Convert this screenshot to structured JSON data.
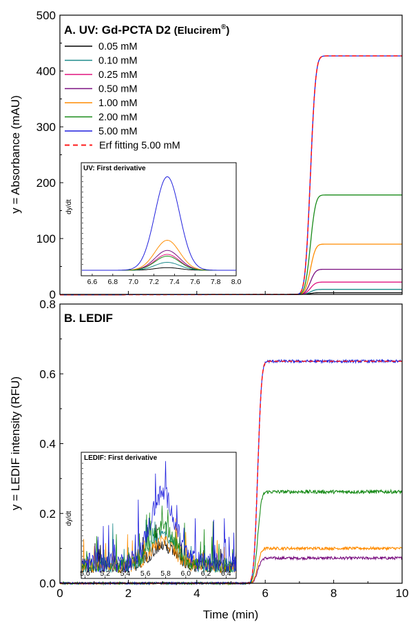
{
  "chart_data": [
    {
      "type": "line",
      "panel": "A",
      "title": "A. UV: Gd-PCTA D2",
      "title_suffix": "(Elucirem",
      "title_reg": "®",
      "title_close": ")",
      "ylabel": "y = Absorbance (mAU)",
      "xlim": [
        0,
        10
      ],
      "ylim": [
        0,
        500
      ],
      "yticks": [
        0,
        100,
        200,
        300,
        400,
        500
      ],
      "step": {
        "t0": 7.32,
        "sigma": 0.12,
        "baseline_slope": -3.0
      },
      "series": [
        {
          "name": "0.05 mM",
          "color": "#000000",
          "plateau": 3,
          "dash": false
        },
        {
          "name": "0.10 mM",
          "color": "#1b8a8a",
          "plateau": 9,
          "dash": false
        },
        {
          "name": "0.25 mM",
          "color": "#e0137f",
          "plateau": 22,
          "dash": false
        },
        {
          "name": "0.50 mM",
          "color": "#7a0f80",
          "plateau": 45,
          "dash": false
        },
        {
          "name": "1.00 mM",
          "color": "#ff8c00",
          "plateau": 90,
          "dash": false
        },
        {
          "name": "2.00 mM",
          "color": "#178a17",
          "plateau": 178,
          "dash": false
        },
        {
          "name": "5.00 mM",
          "color": "#1f1fdd",
          "plateau": 427,
          "dash": false
        },
        {
          "name": "Erf fitting 5.00 mM",
          "color": "#ff1a1a",
          "plateau": 427,
          "dash": true
        }
      ],
      "inset": {
        "title": "UV: First derivative",
        "ylabel": "dy/dt",
        "xlim": [
          6.5,
          8.0
        ],
        "xticks": [
          "6.6",
          "6.8",
          "7.0",
          "7.2",
          "7.4",
          "7.6",
          "7.8",
          "8.0"
        ],
        "peak_center": 7.33,
        "peak_width": 0.12,
        "peaks": [
          {
            "color": "#000000",
            "height": 6
          },
          {
            "color": "#1b8a8a",
            "height": 18
          },
          {
            "color": "#e0137f",
            "height": 36
          },
          {
            "color": "#7a0f80",
            "height": 45
          },
          {
            "color": "#ff8c00",
            "height": 68
          },
          {
            "color": "#178a17",
            "height": 32
          },
          {
            "color": "#1f1fdd",
            "height": 212
          }
        ],
        "ymax": 225
      }
    },
    {
      "type": "line",
      "panel": "B",
      "title": "B. LEDIF",
      "xlabel": "Time (min)",
      "ylabel": "y = LEDIF intensity (RFU)",
      "xlim": [
        0,
        10
      ],
      "ylim": [
        0,
        0.8
      ],
      "xticks": [
        0,
        2,
        4,
        6,
        8,
        10
      ],
      "yticks": [
        "0.0",
        "0.2",
        "0.4",
        "0.6",
        "0.8"
      ],
      "step": {
        "t0": 5.78,
        "sigma": 0.09
      },
      "series": [
        {
          "name": "0.50 mM",
          "color": "#7a0f80",
          "plateau": 0.072,
          "noise": 0.004
        },
        {
          "name": "1.00 mM",
          "color": "#ff8c00",
          "plateau": 0.1,
          "noise": 0.004
        },
        {
          "name": "2.00 mM",
          "color": "#178a17",
          "plateau": 0.262,
          "noise": 0.005
        },
        {
          "name": "5.00 mM",
          "color": "#1f1fdd",
          "plateau": 0.636,
          "noise": 0.004
        },
        {
          "name": "Erf fitting 5.00 mM",
          "color": "#ff1a1a",
          "plateau": 0.636,
          "noise": 0,
          "dash": true
        }
      ],
      "inset": {
        "title": "LEDIF: First derivative",
        "ylabel": "dy/dt",
        "xlim": [
          4.97,
          6.5
        ],
        "xticks": [
          "5.0",
          "5.2",
          "5.4",
          "5.6",
          "5.8",
          "6.0",
          "6.2",
          "6.4"
        ],
        "peak_center": 5.77,
        "peak_width": 0.12,
        "noise_colors": [
          "#000000",
          "#1b8a8a",
          "#ff8c00",
          "#178a17",
          "#1f1fdd"
        ]
      }
    }
  ]
}
